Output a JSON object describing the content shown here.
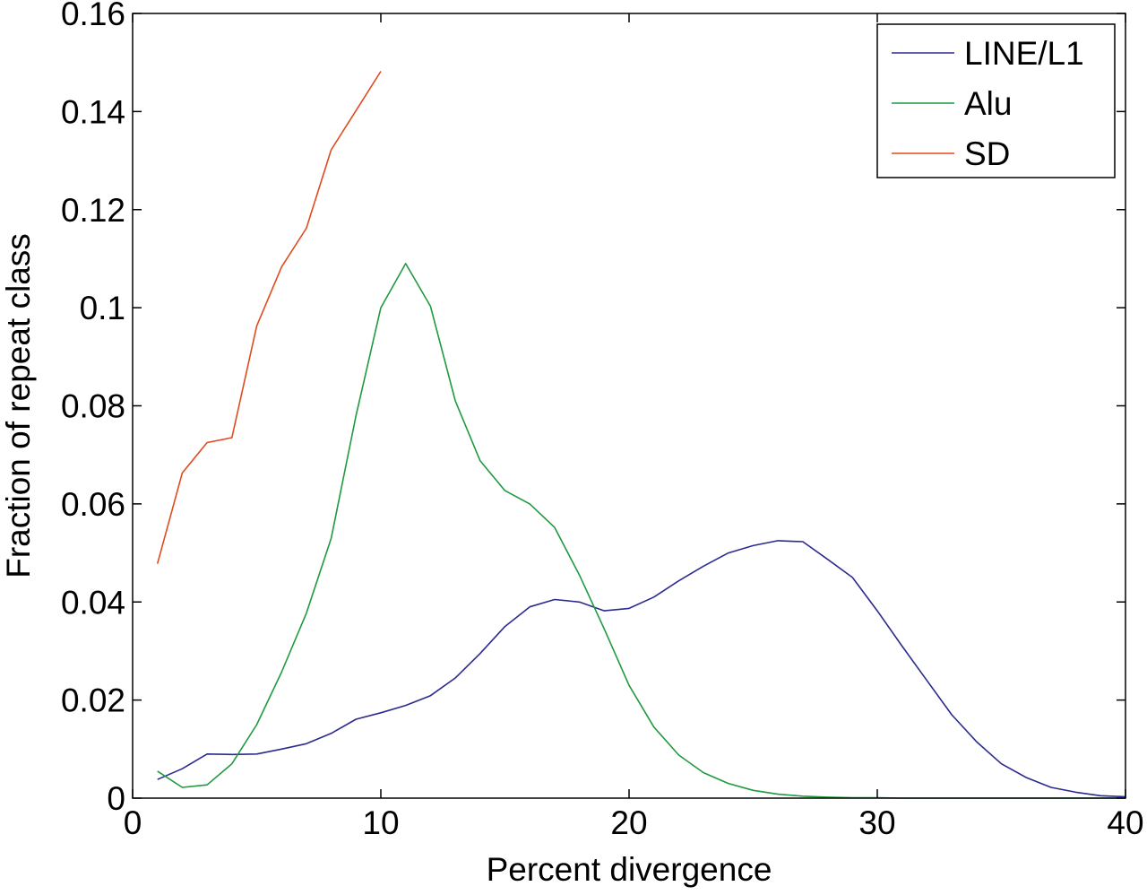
{
  "chart_data": {
    "type": "line",
    "title": "",
    "xlabel": "Percent divergence",
    "ylabel": "Fraction of repeat class",
    "xlim": [
      0,
      40
    ],
    "ylim": [
      0,
      0.16
    ],
    "x_ticks": [
      0,
      10,
      20,
      30,
      40
    ],
    "x_tick_labels": [
      "0",
      "10",
      "20",
      "30",
      "40"
    ],
    "y_ticks": [
      0,
      0.02,
      0.04,
      0.06,
      0.08,
      0.1,
      0.12,
      0.14,
      0.16
    ],
    "y_tick_labels": [
      "0",
      "0.02",
      "0.04",
      "0.06",
      "0.08",
      "0.1",
      "0.12",
      "0.14",
      "0.16"
    ],
    "grid": false,
    "legend_position": "top-right",
    "series": [
      {
        "name": "LINE/L1",
        "color": "#2b2b8f",
        "x": [
          1,
          2,
          3,
          4,
          5,
          6,
          7,
          8,
          9,
          10,
          11,
          12,
          13,
          14,
          15,
          16,
          17,
          18,
          19,
          20,
          21,
          22,
          23,
          24,
          25,
          26,
          27,
          28,
          29,
          30,
          31,
          32,
          33,
          34,
          35,
          36,
          37,
          38,
          39,
          40
        ],
        "y": [
          0.0038,
          0.006,
          0.009,
          0.0089,
          0.009,
          0.01,
          0.0111,
          0.0132,
          0.0161,
          0.0174,
          0.0189,
          0.0209,
          0.0245,
          0.0295,
          0.035,
          0.039,
          0.0405,
          0.04,
          0.0382,
          0.0387,
          0.041,
          0.0443,
          0.0473,
          0.05,
          0.0515,
          0.0525,
          0.0523,
          0.0487,
          0.045,
          0.0382,
          0.031,
          0.024,
          0.017,
          0.0115,
          0.007,
          0.0042,
          0.0022,
          0.0012,
          0.0005,
          0.0003
        ]
      },
      {
        "name": "Alu",
        "color": "#1f9a3f",
        "x": [
          1,
          2,
          3,
          4,
          5,
          6,
          7,
          8,
          9,
          10,
          11,
          12,
          13,
          14,
          15,
          16,
          17,
          18,
          19,
          20,
          21,
          22,
          23,
          24,
          25,
          26,
          27,
          28,
          29,
          30,
          31,
          32,
          33,
          34,
          35,
          36,
          37,
          38,
          39,
          40
        ],
        "y": [
          0.0055,
          0.0022,
          0.0027,
          0.007,
          0.015,
          0.0257,
          0.0377,
          0.053,
          0.078,
          0.1,
          0.109,
          0.1003,
          0.081,
          0.0688,
          0.0627,
          0.06,
          0.0552,
          0.0455,
          0.0345,
          0.023,
          0.0145,
          0.0088,
          0.0052,
          0.003,
          0.0016,
          0.0008,
          0.0004,
          0.0002,
          0.0001,
          0.0001,
          0.0,
          0.0,
          0.0,
          0.0,
          0.0,
          0.0,
          0.0,
          0.0,
          0.0,
          0.0
        ]
      },
      {
        "name": "SD",
        "color": "#e04a1f",
        "x": [
          1,
          2,
          3,
          4,
          5,
          6,
          7,
          8,
          9,
          10
        ],
        "y": [
          0.0478,
          0.0663,
          0.0725,
          0.0735,
          0.0963,
          0.1083,
          0.1162,
          0.1322,
          0.1402,
          0.1482
        ]
      }
    ]
  }
}
